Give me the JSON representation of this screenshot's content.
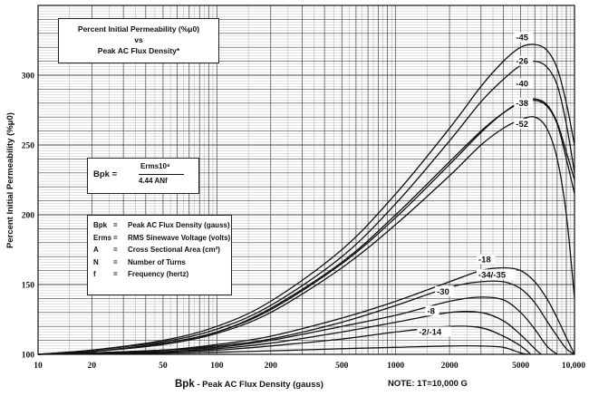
{
  "chart_data": {
    "type": "line",
    "title_lines": [
      "Percent Initial Permeability (%μ0)",
      "vs",
      "Peak AC Flux Density*"
    ],
    "xlabel": "Bpk - Peak AC Flux Density (gauss)",
    "xlabel_main": "Bpk",
    "xlabel_rest": " - Peak AC Flux Density (gauss)",
    "ylabel": "Percent Initial Permeability (%μ0)",
    "note": "NOTE: 1T=10,000 G",
    "x_scale": "log",
    "xlim": [
      10,
      10000
    ],
    "ylim": [
      100,
      350
    ],
    "x_ticks": [
      10,
      20,
      50,
      100,
      200,
      500,
      1000,
      2000,
      5000,
      10000
    ],
    "x_tick_labels": [
      "10",
      "20",
      "50",
      "100",
      "200",
      "500",
      "1000",
      "2000",
      "5000",
      "10,000"
    ],
    "y_ticks": [
      100,
      150,
      200,
      250,
      300
    ],
    "y_tick_labels": [
      "100",
      "150",
      "200",
      "250",
      "300"
    ],
    "grid": true,
    "formula": {
      "lhs": "Bpk =",
      "numerator": "Erms10⁸",
      "denominator": "4.44 ANf"
    },
    "definitions": [
      {
        "symbol": "Bpk",
        "eq": "=",
        "text": "Peak AC Flux Density (gauss)"
      },
      {
        "symbol": "Erms",
        "eq": "=",
        "text": "RMS Sinewave Voltage (volts)"
      },
      {
        "symbol": "A",
        "eq": "=",
        "text": "Cross Sectional Area (cm²)"
      },
      {
        "symbol": "N",
        "eq": "=",
        "text": "Number of Turns"
      },
      {
        "symbol": "f",
        "eq": "=",
        "text": "Frequency (hertz)"
      }
    ],
    "series": [
      {
        "name": "-45",
        "points": [
          [
            10,
            100
          ],
          [
            20,
            103
          ],
          [
            50,
            110
          ],
          [
            100,
            120
          ],
          [
            200,
            138
          ],
          [
            500,
            175
          ],
          [
            1000,
            215
          ],
          [
            2000,
            262
          ],
          [
            3000,
            292
          ],
          [
            4000,
            310
          ],
          [
            5000,
            320
          ],
          [
            6000,
            322
          ],
          [
            7000,
            318
          ],
          [
            8000,
            305
          ],
          [
            9000,
            280
          ],
          [
            10000,
            250
          ]
        ]
      },
      {
        "name": "-26",
        "points": [
          [
            10,
            100
          ],
          [
            20,
            103
          ],
          [
            50,
            109
          ],
          [
            100,
            118
          ],
          [
            200,
            135
          ],
          [
            500,
            170
          ],
          [
            1000,
            208
          ],
          [
            2000,
            253
          ],
          [
            3000,
            281
          ],
          [
            4000,
            297
          ],
          [
            5000,
            307
          ],
          [
            6000,
            310
          ],
          [
            7000,
            306
          ],
          [
            8000,
            293
          ],
          [
            9000,
            265
          ],
          [
            10000,
            230
          ]
        ]
      },
      {
        "name": "-40",
        "points": [
          [
            10,
            100
          ],
          [
            20,
            102
          ],
          [
            50,
            108
          ],
          [
            100,
            116
          ],
          [
            200,
            133
          ],
          [
            500,
            166
          ],
          [
            1000,
            200
          ],
          [
            2000,
            238
          ],
          [
            3000,
            260
          ],
          [
            4000,
            273
          ],
          [
            5000,
            280
          ],
          [
            6000,
            282
          ],
          [
            7000,
            278
          ],
          [
            8000,
            265
          ],
          [
            9000,
            240
          ],
          [
            10000,
            215
          ]
        ]
      },
      {
        "name": "-38",
        "points": [
          [
            10,
            100
          ],
          [
            20,
            102
          ],
          [
            50,
            108
          ],
          [
            100,
            116
          ],
          [
            200,
            132
          ],
          [
            500,
            165
          ],
          [
            1000,
            198
          ],
          [
            2000,
            236
          ],
          [
            3000,
            259
          ],
          [
            4000,
            273
          ],
          [
            5000,
            281
          ],
          [
            6000,
            283
          ],
          [
            7000,
            279
          ],
          [
            8000,
            266
          ],
          [
            9000,
            245
          ],
          [
            10000,
            225
          ]
        ]
      },
      {
        "name": "-52",
        "points": [
          [
            10,
            100
          ],
          [
            20,
            102
          ],
          [
            50,
            107
          ],
          [
            100,
            115
          ],
          [
            200,
            130
          ],
          [
            500,
            162
          ],
          [
            1000,
            193
          ],
          [
            2000,
            228
          ],
          [
            3000,
            250
          ],
          [
            4000,
            262
          ],
          [
            5000,
            268
          ],
          [
            6000,
            270
          ],
          [
            7000,
            262
          ],
          [
            8000,
            240
          ],
          [
            9000,
            200
          ],
          [
            10000,
            140
          ]
        ]
      },
      {
        "name": "-18",
        "points": [
          [
            10,
            100
          ],
          [
            20,
            101
          ],
          [
            50,
            103
          ],
          [
            100,
            107
          ],
          [
            200,
            113
          ],
          [
            500,
            126
          ],
          [
            1000,
            138
          ],
          [
            2000,
            152
          ],
          [
            3000,
            160
          ],
          [
            4000,
            162
          ],
          [
            5000,
            160
          ],
          [
            6000,
            152
          ],
          [
            7000,
            140
          ],
          [
            8000,
            126
          ],
          [
            9000,
            112
          ],
          [
            10000,
            100
          ]
        ]
      },
      {
        "name": "-34/-35",
        "points": [
          [
            10,
            100
          ],
          [
            20,
            101
          ],
          [
            50,
            103
          ],
          [
            100,
            106
          ],
          [
            200,
            111
          ],
          [
            500,
            123
          ],
          [
            1000,
            135
          ],
          [
            2000,
            148
          ],
          [
            3000,
            152
          ],
          [
            4000,
            152
          ],
          [
            5000,
            147
          ],
          [
            6000,
            137
          ],
          [
            7000,
            124
          ],
          [
            8000,
            113
          ],
          [
            9000,
            104
          ],
          [
            10000,
            100
          ]
        ]
      },
      {
        "name": "-30",
        "points": [
          [
            10,
            100
          ],
          [
            20,
            101
          ],
          [
            50,
            103
          ],
          [
            100,
            105
          ],
          [
            200,
            110
          ],
          [
            500,
            120
          ],
          [
            1000,
            128
          ],
          [
            2000,
            138
          ],
          [
            3000,
            141
          ],
          [
            4000,
            139
          ],
          [
            5000,
            130
          ],
          [
            6000,
            118
          ],
          [
            7000,
            106
          ],
          [
            8000,
            100
          ]
        ]
      },
      {
        "name": "-8",
        "points": [
          [
            10,
            100
          ],
          [
            20,
            101
          ],
          [
            50,
            102
          ],
          [
            100,
            104
          ],
          [
            200,
            108
          ],
          [
            500,
            116
          ],
          [
            1000,
            123
          ],
          [
            2000,
            130
          ],
          [
            3000,
            130
          ],
          [
            4000,
            124
          ],
          [
            5000,
            114
          ],
          [
            6000,
            104
          ],
          [
            6500,
            100
          ]
        ]
      },
      {
        "name": "-2/-14",
        "points": [
          [
            10,
            100
          ],
          [
            20,
            100.5
          ],
          [
            50,
            101.5
          ],
          [
            100,
            103
          ],
          [
            200,
            106
          ],
          [
            500,
            111
          ],
          [
            1000,
            116
          ],
          [
            2000,
            120
          ],
          [
            3000,
            119
          ],
          [
            4000,
            113
          ],
          [
            5000,
            106
          ],
          [
            5700,
            100
          ]
        ]
      },
      {
        "name": "",
        "points": [
          [
            10,
            100
          ],
          [
            50,
            100.8
          ],
          [
            100,
            101.5
          ],
          [
            200,
            102.5
          ],
          [
            500,
            104
          ],
          [
            1000,
            105
          ],
          [
            2000,
            106
          ],
          [
            3000,
            106
          ],
          [
            4000,
            105
          ],
          [
            5000,
            101
          ],
          [
            5500,
            100
          ]
        ]
      }
    ],
    "curve_labels": [
      "-45",
      "-26",
      "-40",
      "-38",
      "-52",
      "-18",
      "-34/-35",
      "-30",
      "-8",
      "-2/-14"
    ]
  }
}
